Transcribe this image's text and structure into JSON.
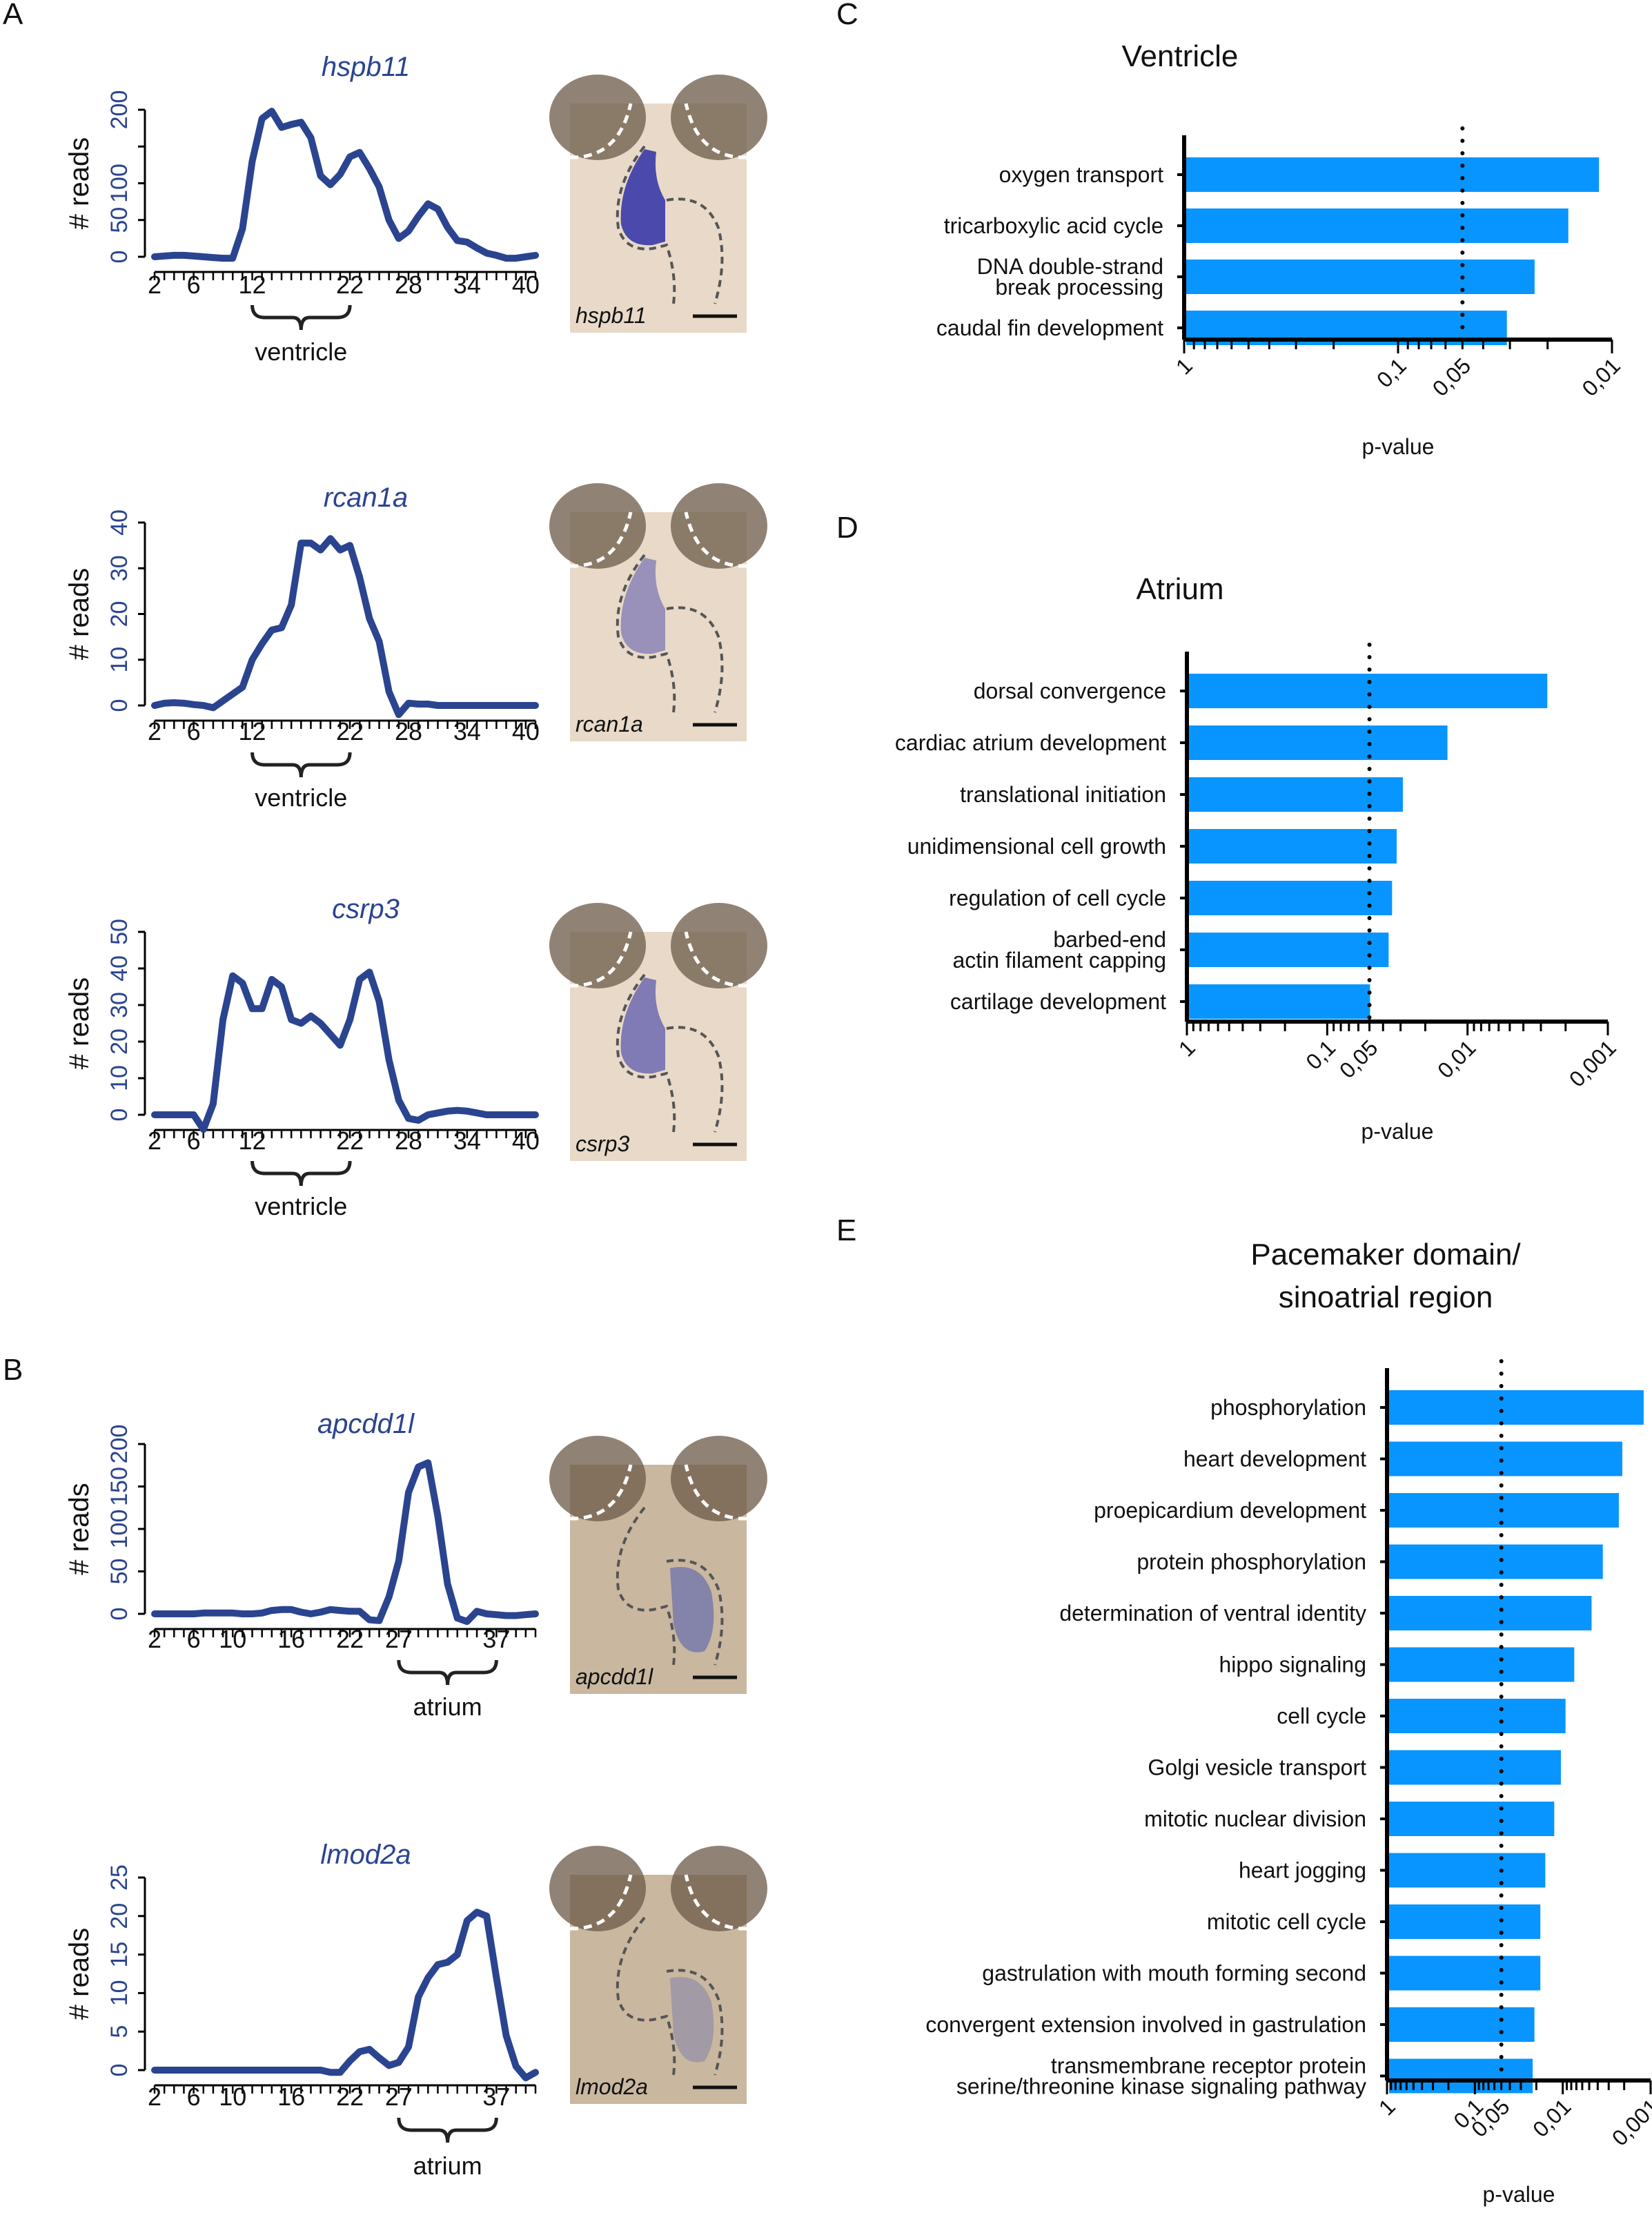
{
  "figure": {
    "panel_letters": [
      "A",
      "B",
      "C",
      "D",
      "E"
    ],
    "colors": {
      "line": "#2a4490",
      "tick_label_y": "#2a4490",
      "bar": "#0895ff",
      "axis": "#000000",
      "micrograph_bg": "#e8d9c8",
      "stain": "#3a3aa8"
    }
  },
  "chart_data": [
    {
      "id": "hspb11",
      "panel": "A",
      "type": "line",
      "title": "hspb11",
      "ylabel": "# reads",
      "ylim": [
        0,
        200
      ],
      "yticks": [
        0,
        50,
        100,
        200
      ],
      "yticks_minor": [
        150
      ],
      "xlim": [
        2,
        41
      ],
      "xtick_labels": [
        "2",
        "6",
        "12",
        "22",
        "28",
        "34",
        "40"
      ],
      "region": {
        "label": "ventricle",
        "from": 12,
        "to": 22
      },
      "x": [
        2,
        3,
        4,
        5,
        6,
        7,
        8,
        9,
        10,
        11,
        12,
        13,
        14,
        15,
        16,
        17,
        18,
        19,
        20,
        21,
        22,
        23,
        24,
        25,
        26,
        27,
        28,
        29,
        30,
        31,
        32,
        33,
        34,
        35,
        36,
        37,
        38,
        39,
        40,
        41
      ],
      "values": [
        0,
        1,
        2,
        2,
        1,
        0,
        -1,
        -2,
        -2,
        38,
        130,
        188,
        198,
        176,
        180,
        183,
        162,
        110,
        98,
        112,
        136,
        142,
        120,
        95,
        50,
        25,
        35,
        55,
        72,
        65,
        40,
        22,
        20,
        12,
        5,
        2,
        -2,
        -2,
        0,
        2
      ],
      "micrograph_label": "hspb11",
      "micrograph_stain": "ventricle"
    },
    {
      "id": "rcan1a",
      "panel": "A",
      "type": "line",
      "title": "rcan1a",
      "ylabel": "# reads",
      "ylim": [
        0,
        40
      ],
      "yticks": [
        0,
        10,
        20,
        30,
        40
      ],
      "xlim": [
        2,
        41
      ],
      "xtick_labels": [
        "2",
        "6",
        "12",
        "22",
        "28",
        "34",
        "40"
      ],
      "region": {
        "label": "ventricle",
        "from": 12,
        "to": 22
      },
      "x": [
        2,
        3,
        4,
        5,
        6,
        7,
        8,
        9,
        10,
        11,
        12,
        13,
        14,
        15,
        16,
        17,
        18,
        19,
        20,
        21,
        22,
        23,
        24,
        25,
        26,
        27,
        28,
        29,
        30,
        31,
        32,
        33,
        34,
        35,
        36,
        37,
        38,
        39,
        40,
        41
      ],
      "values": [
        0,
        0.5,
        0.6,
        0.5,
        0.2,
        0,
        -0.5,
        1,
        2.5,
        4,
        10,
        13.5,
        16.5,
        17,
        22,
        35.5,
        35.5,
        34,
        36.5,
        34,
        35,
        28,
        19,
        14,
        3,
        -2,
        0.5,
        0.3,
        0.3,
        0,
        0,
        0,
        0,
        0,
        0,
        0,
        0,
        0,
        0,
        0
      ],
      "micrograph_label": "rcan1a",
      "micrograph_stain": "ventricle-light"
    },
    {
      "id": "csrp3",
      "panel": "A",
      "type": "line",
      "title": "csrp3",
      "ylabel": "# reads",
      "ylim": [
        0,
        50
      ],
      "yticks": [
        0,
        10,
        20,
        30,
        40,
        50
      ],
      "xlim": [
        2,
        41
      ],
      "xtick_labels": [
        "2",
        "6",
        "12",
        "22",
        "28",
        "34",
        "40"
      ],
      "region": {
        "label": "ventricle",
        "from": 12,
        "to": 22
      },
      "x": [
        2,
        3,
        4,
        5,
        6,
        7,
        8,
        9,
        10,
        11,
        12,
        13,
        14,
        15,
        16,
        17,
        18,
        19,
        20,
        21,
        22,
        23,
        24,
        25,
        26,
        27,
        28,
        29,
        30,
        31,
        32,
        33,
        34,
        35,
        36,
        37,
        38,
        39,
        40,
        41
      ],
      "values": [
        0,
        0,
        0,
        0,
        0,
        -4,
        3,
        26,
        38,
        36,
        29,
        29,
        37,
        35,
        26,
        25,
        27,
        25,
        22,
        19,
        26,
        37,
        39,
        31,
        15,
        4,
        -1,
        -1.5,
        0,
        0.5,
        1,
        1.2,
        1,
        0.5,
        0,
        0,
        0,
        0,
        0,
        0
      ],
      "micrograph_label": "csrp3",
      "micrograph_stain": "ventricle-medium"
    },
    {
      "id": "apcdd1l",
      "panel": "B",
      "type": "line",
      "title": "apcdd1l",
      "ylabel": "# reads",
      "ylim": [
        0,
        200
      ],
      "yticks": [
        0,
        50,
        100,
        150,
        200
      ],
      "xlim": [
        2,
        41
      ],
      "xtick_labels": [
        "2",
        "6",
        "10",
        "16",
        "22",
        "27",
        "37"
      ],
      "region": {
        "label": "atrium",
        "from": 27,
        "to": 37
      },
      "x": [
        2,
        3,
        4,
        5,
        6,
        7,
        8,
        9,
        10,
        11,
        12,
        13,
        14,
        15,
        16,
        17,
        18,
        19,
        20,
        21,
        22,
        23,
        24,
        25,
        26,
        27,
        28,
        29,
        30,
        31,
        32,
        33,
        34,
        35,
        36,
        37,
        38,
        39,
        40,
        41
      ],
      "values": [
        0,
        0,
        0,
        0,
        0,
        1,
        1,
        1,
        1,
        0,
        0,
        1,
        4,
        5,
        5,
        2,
        0,
        2,
        5,
        4,
        3,
        3,
        -7,
        -8,
        20,
        62,
        143,
        173,
        178,
        115,
        35,
        -5,
        -9,
        3,
        0,
        -1,
        -2,
        -2,
        -1,
        0
      ],
      "micrograph_label": "apcdd1l",
      "micrograph_stain": "atrium"
    },
    {
      "id": "lmod2a",
      "panel": "B",
      "type": "line",
      "title": "lmod2a",
      "ylabel": "# reads",
      "ylim": [
        0,
        25
      ],
      "yticks": [
        0,
        5,
        10,
        15,
        20,
        25
      ],
      "xlim": [
        2,
        41
      ],
      "xtick_labels": [
        "2",
        "6",
        "10",
        "16",
        "22",
        "27",
        "37"
      ],
      "region": {
        "label": "atrium",
        "from": 27,
        "to": 37
      },
      "x": [
        2,
        3,
        4,
        5,
        6,
        7,
        8,
        9,
        10,
        11,
        12,
        13,
        14,
        15,
        16,
        17,
        18,
        19,
        20,
        21,
        22,
        23,
        24,
        25,
        26,
        27,
        28,
        29,
        30,
        31,
        32,
        33,
        34,
        35,
        36,
        37,
        38,
        39,
        40,
        41
      ],
      "values": [
        0,
        0,
        0,
        0,
        0,
        0,
        0,
        0,
        0,
        0,
        0,
        0,
        0,
        0,
        0,
        0,
        0,
        0,
        -0.3,
        -0.3,
        1.2,
        2.4,
        2.7,
        1.6,
        0.6,
        1,
        3,
        9.5,
        12,
        13.7,
        14,
        15,
        19.4,
        20.5,
        20,
        12,
        4.5,
        0.5,
        -1,
        -0.3
      ],
      "micrograph_label": "lmod2a",
      "micrograph_stain": "atrium-faint"
    },
    {
      "id": "ventricle-go",
      "panel": "C",
      "type": "bar",
      "orientation": "horizontal",
      "title": "Ventricle",
      "xlabel": "p-value",
      "xscale": "log-reversed",
      "xlim": [
        1,
        0.01
      ],
      "xtick_labels": [
        "1",
        "0,1",
        "0,05",
        "0,01"
      ],
      "xtick_values": [
        1,
        0.1,
        0.05,
        0.01
      ],
      "threshold": 0.05,
      "categories": [
        "oxygen transport",
        "tricarboxylic acid cycle",
        "DNA double-strand\nbreak processing",
        "caudal fin development"
      ],
      "values": [
        0.0115,
        0.016,
        0.023,
        0.031
      ]
    },
    {
      "id": "atrium-go",
      "panel": "D",
      "type": "bar",
      "orientation": "horizontal",
      "title": "Atrium",
      "xlabel": "p-value",
      "xscale": "log-reversed",
      "xlim": [
        1,
        0.001
      ],
      "xtick_labels": [
        "1",
        "0,1",
        "0,05",
        "0,01",
        "0,001"
      ],
      "xtick_values": [
        1,
        0.1,
        0.05,
        0.01,
        0.001
      ],
      "threshold": 0.05,
      "categories": [
        "dorsal convergence",
        "cardiac atrium development",
        "translational initiation",
        "unidimensional cell growth",
        "regulation of cell cycle",
        "barbed-end\nactin filament capping",
        "cartilage development"
      ],
      "values": [
        0.0027,
        0.0139,
        0.0289,
        0.032,
        0.0345,
        0.0365,
        0.0495
      ]
    },
    {
      "id": "pacemaker-go",
      "panel": "E",
      "type": "bar",
      "orientation": "horizontal",
      "title": "Pacemaker domain/\nsinoatrial region",
      "xlabel": "p-value",
      "xscale": "log-reversed",
      "xlim": [
        1,
        0.001
      ],
      "xtick_labels": [
        "1",
        "0,1",
        "0,05",
        "0,01",
        "0,001"
      ],
      "xtick_values": [
        1,
        0.1,
        0.05,
        0.01,
        0.001
      ],
      "threshold": 0.05,
      "categories": [
        "phosphorylation",
        "heart development",
        "proepicardium development",
        "protein phosphorylation",
        "determination of ventral identity",
        "hippo signaling",
        "cell cycle",
        "Golgi vesicle transport",
        "mitotic nuclear division",
        "heart jogging",
        "mitotic cell cycle",
        "gastrulation with mouth forming second",
        "convergent extension involved in gastrulation",
        "transmembrane receptor protein\nserine/threonine kinase signaling pathway"
      ],
      "values": [
        0.0012,
        0.0021,
        0.0023,
        0.0035,
        0.0047,
        0.0074,
        0.0093,
        0.0105,
        0.0125,
        0.0158,
        0.018,
        0.018,
        0.021,
        0.022
      ]
    }
  ]
}
